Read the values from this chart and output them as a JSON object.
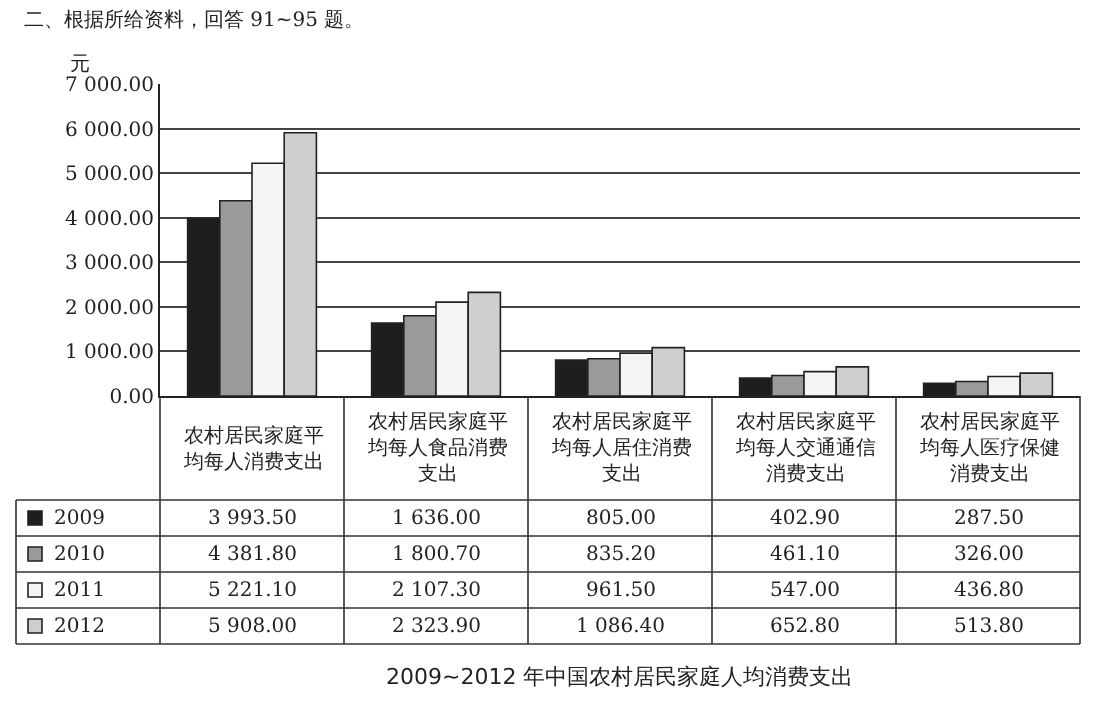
{
  "chart_data": {
    "type": "bar",
    "title": "2009~2012 年中国农村居民家庭人均消费支出",
    "ylabel": "元",
    "annotations": [
      "二、根据所给资料，回答 91~95 题。"
    ],
    "categories": [
      "农村居民家庭平均每人消费支出",
      "农村居民家庭平均每人食品消费支出",
      "农村居民家庭平均每人居住消费支出",
      "农村居民家庭平均每人交通通信消费支出",
      "农村居民家庭平均每人医疗保健消费支出"
    ],
    "series": [
      {
        "name": "2009",
        "color": "#1e1e1e",
        "values": [
          3993.5,
          1636.0,
          805.0,
          402.9,
          287.5
        ],
        "value_labels": [
          "3 993.50",
          "1 636.00",
          "805.00",
          "402.90",
          "287.50"
        ]
      },
      {
        "name": "2010",
        "color": "#9a9a9a",
        "values": [
          4381.8,
          1800.7,
          835.2,
          461.1,
          326.0
        ],
        "value_labels": [
          "4 381.80",
          "1 800.70",
          "835.20",
          "461.10",
          "326.00"
        ]
      },
      {
        "name": "2011",
        "color": "#f4f4f4",
        "values": [
          5221.1,
          2107.3,
          961.5,
          547.0,
          436.8
        ],
        "value_labels": [
          "5 221.10",
          "2 107.30",
          "961.50",
          "547.00",
          "436.80"
        ]
      },
      {
        "name": "2012",
        "color": "#cfcfcf",
        "values": [
          5908.0,
          2323.9,
          1086.4,
          652.8,
          513.8
        ],
        "value_labels": [
          "5 908.00",
          "2 323.90",
          "1 086.40",
          "652.80",
          "513.80"
        ]
      }
    ],
    "ylim": [
      0,
      7000
    ],
    "yticks": [
      {
        "value": 0,
        "label": "0.00"
      },
      {
        "value": 1000,
        "label": "1 000.00"
      },
      {
        "value": 2000,
        "label": "2 000.00"
      },
      {
        "value": 3000,
        "label": "3 000.00"
      },
      {
        "value": 4000,
        "label": "4 000.00"
      },
      {
        "value": 5000,
        "label": "5 000.00"
      },
      {
        "value": 6000,
        "label": "6 000.00"
      },
      {
        "value": 7000,
        "label": "7 000.00"
      }
    ],
    "grid": "y",
    "legend": "bottom left"
  }
}
